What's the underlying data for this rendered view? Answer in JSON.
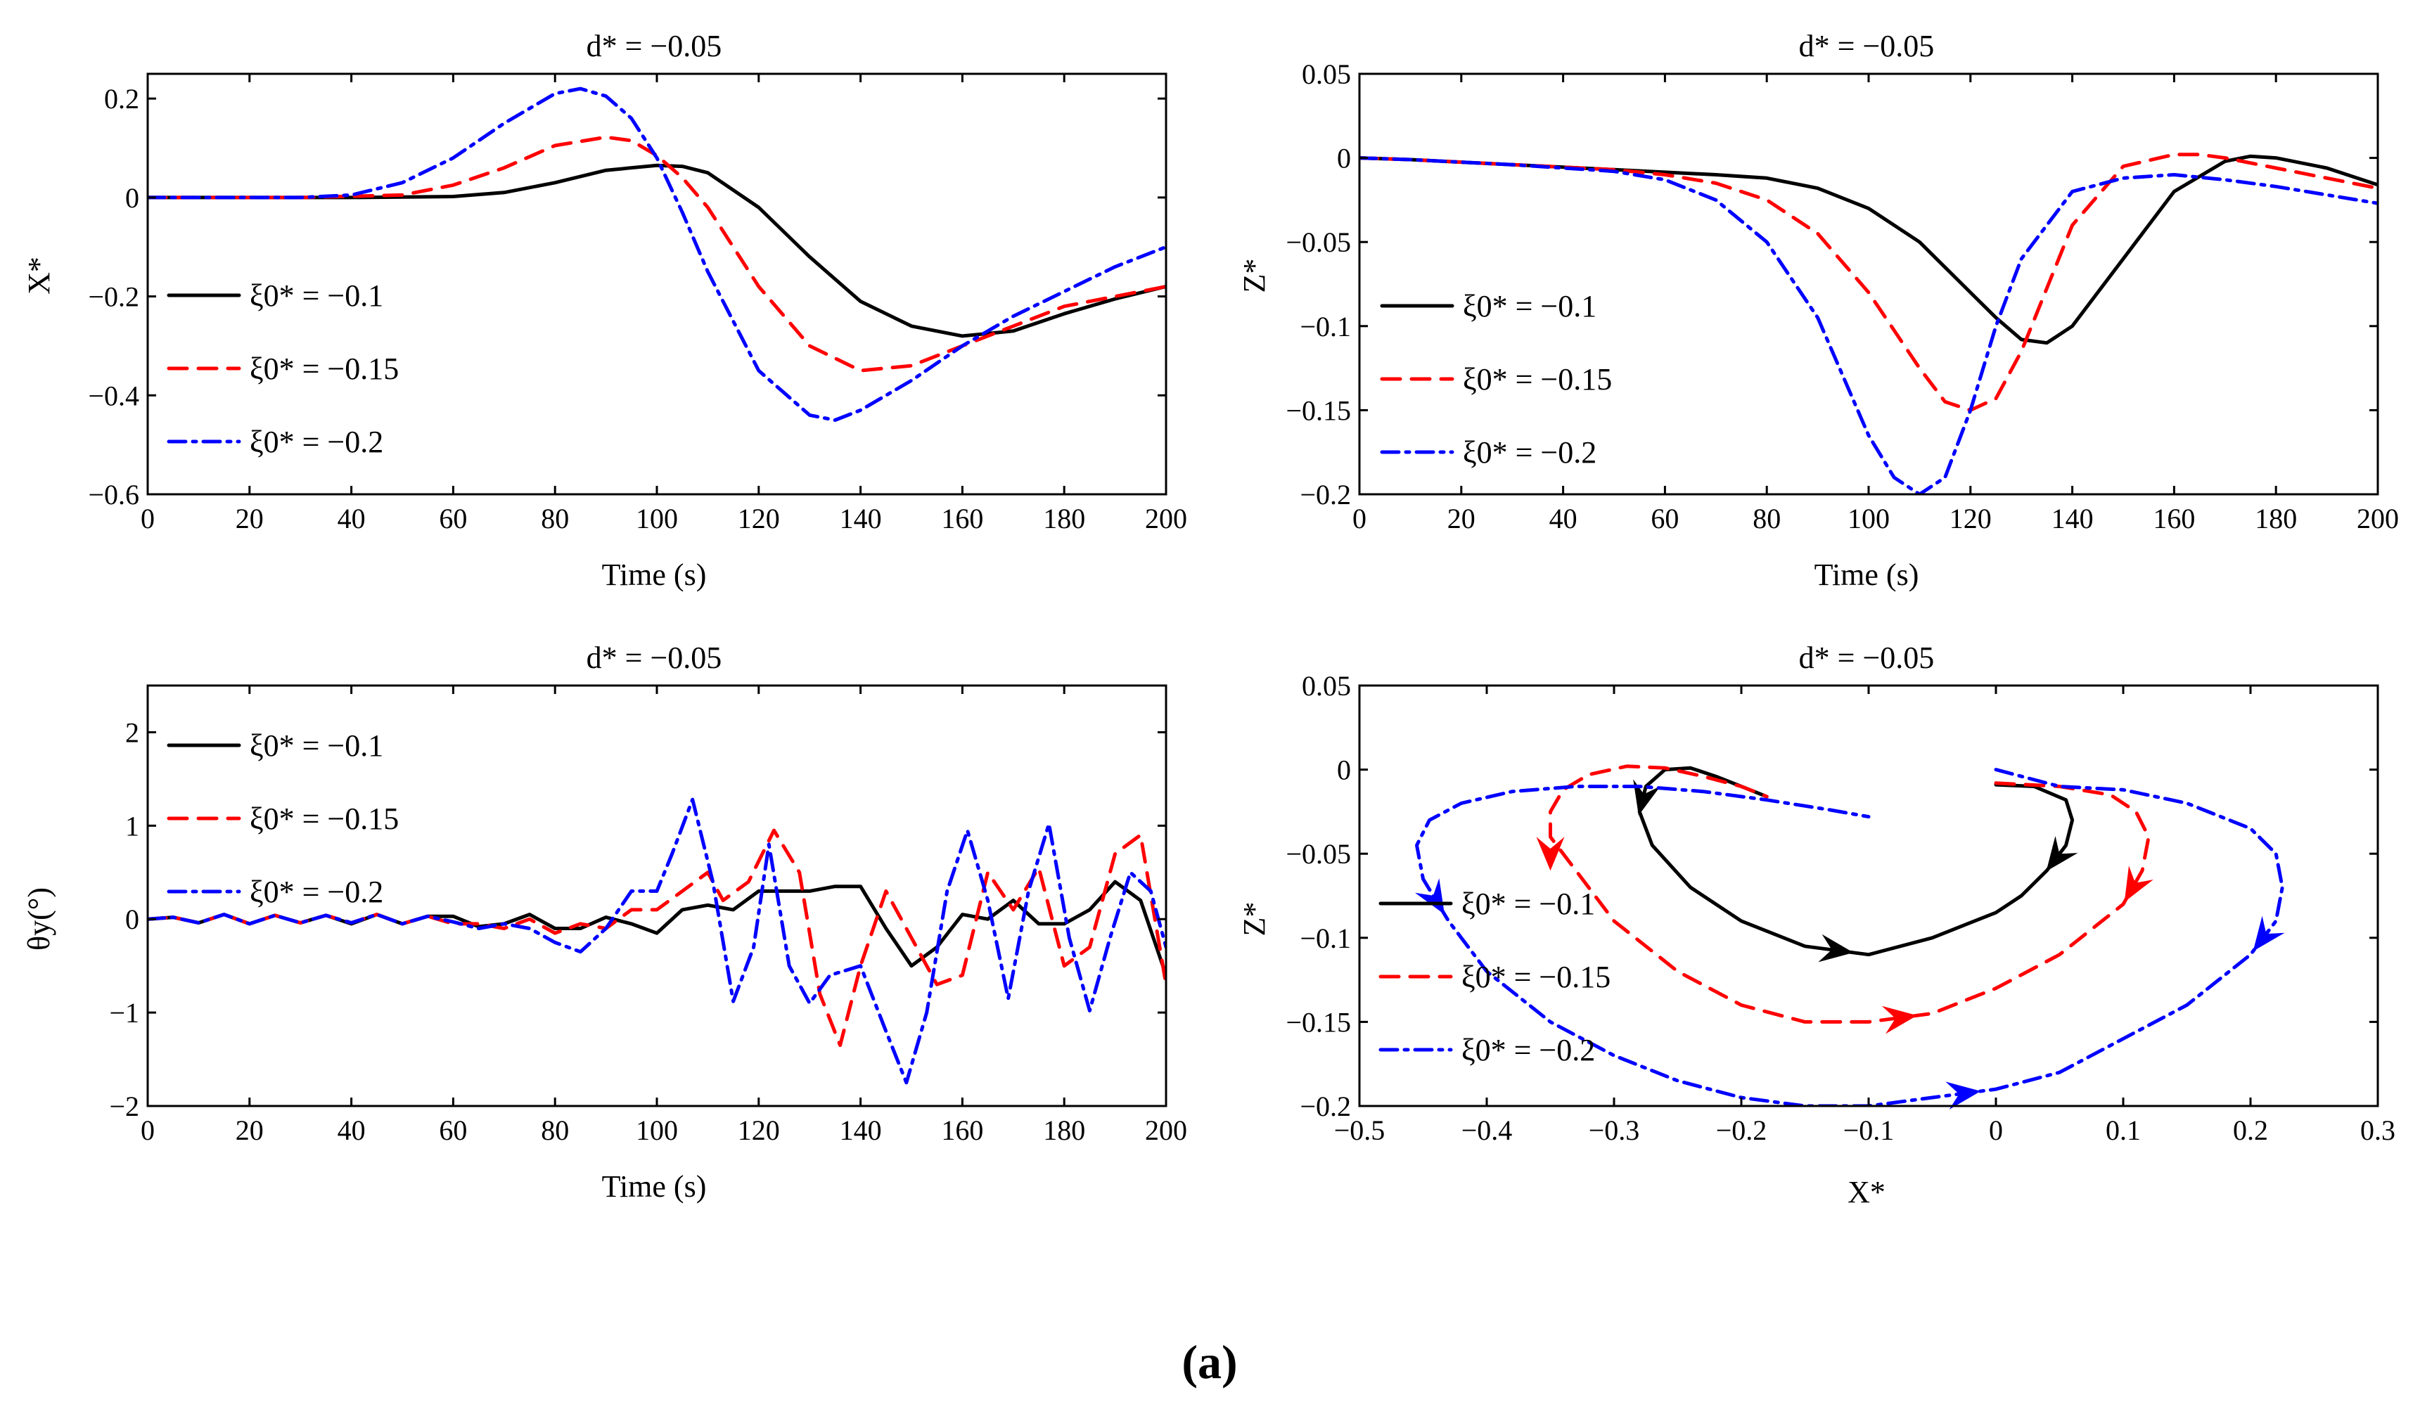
{
  "caption": "(a)",
  "colors": {
    "s1": "#000000",
    "s2": "#ff0000",
    "s3": "#0000ff"
  },
  "chart_data": [
    {
      "type": "line",
      "title": "d* = −0.05",
      "xlabel": "Time (s)",
      "ylabel": "X*",
      "xlim": [
        0,
        200
      ],
      "ylim": [
        -0.6,
        0.25
      ],
      "xticks": [
        0,
        20,
        40,
        60,
        80,
        100,
        120,
        140,
        160,
        180,
        200
      ],
      "xtick_labels": [
        "0",
        "20",
        "40",
        "60",
        "80",
        "100",
        "120",
        "140",
        "160",
        "180",
        "200"
      ],
      "yticks": [
        -0.6,
        -0.4,
        -0.2,
        0,
        0.2
      ],
      "ytick_labels": [
        "−0.6",
        "−0.4",
        "−0.2",
        "0",
        "0.2"
      ],
      "legend": [
        "ξ0* = −0.1",
        "ξ0* = −0.15",
        "ξ0* = −0.2"
      ],
      "legend_position": "lower-left",
      "series": [
        {
          "name": "ξ0* = −0.1",
          "style": "solid",
          "x": [
            0,
            40,
            60,
            70,
            80,
            90,
            100,
            105,
            110,
            120,
            130,
            140,
            150,
            160,
            170,
            180,
            190,
            200
          ],
          "y": [
            0,
            0,
            0.002,
            0.01,
            0.03,
            0.055,
            0.065,
            0.063,
            0.05,
            -0.02,
            -0.12,
            -0.21,
            -0.26,
            -0.28,
            -0.27,
            -0.235,
            -0.205,
            -0.18
          ]
        },
        {
          "name": "ξ0* = −0.15",
          "style": "dashed",
          "x": [
            0,
            30,
            50,
            60,
            70,
            80,
            90,
            95,
            100,
            105,
            110,
            120,
            130,
            140,
            150,
            160,
            170,
            180,
            190,
            200
          ],
          "y": [
            0,
            0,
            0.005,
            0.025,
            0.06,
            0.105,
            0.122,
            0.115,
            0.085,
            0.04,
            -0.02,
            -0.18,
            -0.3,
            -0.35,
            -0.34,
            -0.3,
            -0.26,
            -0.22,
            -0.2,
            -0.18
          ]
        },
        {
          "name": "ξ0* = −0.2",
          "style": "dashdot",
          "x": [
            0,
            30,
            40,
            50,
            60,
            70,
            80,
            85,
            90,
            95,
            100,
            105,
            110,
            120,
            130,
            135,
            140,
            150,
            160,
            170,
            180,
            190,
            200
          ],
          "y": [
            0,
            0,
            0.005,
            0.03,
            0.08,
            0.15,
            0.21,
            0.22,
            0.205,
            0.16,
            0.08,
            -0.03,
            -0.15,
            -0.35,
            -0.44,
            -0.45,
            -0.43,
            -0.37,
            -0.3,
            -0.24,
            -0.19,
            -0.14,
            -0.1
          ]
        }
      ]
    },
    {
      "type": "line",
      "title": "d* = −0.05",
      "xlabel": "Time (s)",
      "ylabel": "Z*",
      "xlim": [
        0,
        200
      ],
      "ylim": [
        -0.2,
        0.05
      ],
      "xticks": [
        0,
        20,
        40,
        60,
        80,
        100,
        120,
        140,
        160,
        180,
        200
      ],
      "xtick_labels": [
        "0",
        "20",
        "40",
        "60",
        "80",
        "100",
        "120",
        "140",
        "160",
        "180",
        "200"
      ],
      "yticks": [
        -0.2,
        -0.15,
        -0.1,
        -0.05,
        0,
        0.05
      ],
      "ytick_labels": [
        "−0.2",
        "−0.15",
        "−0.1",
        "−0.05",
        "0",
        "0.05"
      ],
      "legend": [
        "ξ0* = −0.1",
        "ξ0* = −0.15",
        "ξ0* = −0.2"
      ],
      "legend_position": "lower-left",
      "series": [
        {
          "name": "ξ0* = −0.1",
          "style": "solid",
          "x": [
            0,
            10,
            30,
            50,
            70,
            80,
            90,
            100,
            110,
            120,
            125,
            130,
            135,
            140,
            150,
            160,
            170,
            175,
            180,
            190,
            200
          ],
          "y": [
            0,
            -0.001,
            -0.004,
            -0.007,
            -0.01,
            -0.012,
            -0.018,
            -0.03,
            -0.05,
            -0.08,
            -0.095,
            -0.108,
            -0.11,
            -0.1,
            -0.06,
            -0.02,
            -0.002,
            0.001,
            0,
            -0.006,
            -0.016
          ]
        },
        {
          "name": "ξ0* = −0.15",
          "style": "dashed",
          "x": [
            0,
            10,
            30,
            50,
            60,
            70,
            80,
            90,
            100,
            110,
            115,
            120,
            125,
            130,
            140,
            150,
            160,
            165,
            170,
            180,
            190,
            200
          ],
          "y": [
            0,
            -0.001,
            -0.004,
            -0.007,
            -0.01,
            -0.015,
            -0.025,
            -0.045,
            -0.08,
            -0.125,
            -0.145,
            -0.15,
            -0.143,
            -0.115,
            -0.04,
            -0.005,
            0.002,
            0.002,
            0,
            -0.006,
            -0.012,
            -0.018
          ]
        },
        {
          "name": "ξ0* = −0.2",
          "style": "dashdot",
          "x": [
            0,
            10,
            30,
            50,
            60,
            70,
            80,
            90,
            95,
            100,
            105,
            110,
            115,
            120,
            125,
            130,
            140,
            150,
            160,
            170,
            180,
            190,
            200
          ],
          "y": [
            0,
            -0.001,
            -0.004,
            -0.008,
            -0.013,
            -0.025,
            -0.05,
            -0.095,
            -0.13,
            -0.165,
            -0.19,
            -0.2,
            -0.19,
            -0.15,
            -0.1,
            -0.06,
            -0.02,
            -0.012,
            -0.01,
            -0.013,
            -0.017,
            -0.022,
            -0.027
          ]
        }
      ]
    },
    {
      "type": "line",
      "title": "d* = −0.05",
      "xlabel": "Time (s)",
      "ylabel": "θy(°)",
      "xlim": [
        0,
        200
      ],
      "ylim": [
        -2,
        2.5
      ],
      "xticks": [
        0,
        20,
        40,
        60,
        80,
        100,
        120,
        140,
        160,
        180,
        200
      ],
      "xtick_labels": [
        "0",
        "20",
        "40",
        "60",
        "80",
        "100",
        "120",
        "140",
        "160",
        "180",
        "200"
      ],
      "yticks": [
        -2,
        -1,
        0,
        1,
        2
      ],
      "ytick_labels": [
        "−2",
        "−1",
        "0",
        "1",
        "2"
      ],
      "legend": [
        "ξ0* = −0.1",
        "ξ0* = −0.15",
        "ξ0* = −0.2"
      ],
      "legend_position": "upper-left",
      "series": [
        {
          "name": "ξ0* = −0.1",
          "style": "solid",
          "x": [
            0,
            5,
            10,
            15,
            20,
            25,
            30,
            35,
            40,
            45,
            50,
            55,
            60,
            65,
            70,
            75,
            80,
            85,
            90,
            95,
            100,
            105,
            110,
            115,
            120,
            125,
            130,
            135,
            140,
            145,
            150,
            155,
            160,
            165,
            170,
            175,
            180,
            185,
            190,
            195,
            200
          ],
          "y": [
            0,
            0.02,
            -0.04,
            0.05,
            -0.05,
            0.04,
            -0.04,
            0.04,
            -0.05,
            0.05,
            -0.05,
            0.03,
            0.03,
            -0.08,
            -0.05,
            0.05,
            -0.1,
            -0.1,
            0.02,
            -0.05,
            -0.15,
            0.1,
            0.15,
            0.1,
            0.3,
            0.3,
            0.3,
            0.35,
            0.35,
            -0.1,
            -0.5,
            -0.3,
            0.05,
            0.0,
            0.2,
            -0.05,
            -0.05,
            0.1,
            0.4,
            0.2,
            -0.6
          ]
        },
        {
          "name": "ξ0* = −0.15",
          "style": "dashed",
          "x": [
            0,
            5,
            10,
            15,
            20,
            25,
            30,
            35,
            40,
            45,
            50,
            55,
            60,
            65,
            70,
            75,
            80,
            85,
            90,
            95,
            100,
            105,
            110,
            113,
            118,
            123,
            128,
            132,
            136,
            140,
            145,
            150,
            155,
            160,
            165,
            170,
            175,
            180,
            185,
            190,
            195,
            200
          ],
          "y": [
            0,
            0.02,
            -0.04,
            0.05,
            -0.05,
            0.04,
            -0.04,
            0.04,
            -0.04,
            0.05,
            -0.05,
            0.03,
            -0.05,
            -0.05,
            -0.1,
            0.0,
            -0.15,
            -0.05,
            -0.1,
            0.1,
            0.1,
            0.3,
            0.5,
            0.2,
            0.4,
            0.95,
            0.5,
            -0.8,
            -1.35,
            -0.5,
            0.3,
            -0.2,
            -0.7,
            -0.6,
            0.5,
            0.1,
            0.55,
            -0.5,
            -0.3,
            0.7,
            0.9,
            -0.7
          ]
        },
        {
          "name": "ξ0* = −0.2",
          "style": "dashdot",
          "x": [
            0,
            5,
            10,
            15,
            20,
            25,
            30,
            35,
            40,
            45,
            50,
            55,
            60,
            65,
            70,
            75,
            80,
            85,
            90,
            95,
            100,
            103,
            107,
            111,
            115,
            119,
            122,
            126,
            130,
            134,
            140,
            145,
            149,
            153,
            157,
            161,
            165,
            169,
            173,
            177,
            181,
            185,
            189,
            193,
            197,
            200
          ],
          "y": [
            0,
            0.02,
            -0.04,
            0.05,
            -0.05,
            0.04,
            -0.04,
            0.04,
            -0.04,
            0.05,
            -0.05,
            0.03,
            -0.03,
            -0.1,
            -0.05,
            -0.1,
            -0.25,
            -0.35,
            -0.1,
            0.3,
            0.3,
            0.7,
            1.28,
            0.4,
            -0.88,
            -0.3,
            0.8,
            -0.5,
            -0.9,
            -0.6,
            -0.5,
            -1.2,
            -1.75,
            -1.0,
            0.3,
            0.95,
            0.2,
            -0.85,
            0.3,
            1.02,
            -0.2,
            -0.98,
            -0.2,
            0.5,
            0.3,
            -0.3
          ]
        }
      ]
    },
    {
      "type": "line",
      "title": "d* = −0.05",
      "xlabel": "X*",
      "ylabel": "Z*",
      "xlim": [
        -0.5,
        0.3
      ],
      "ylim": [
        -0.2,
        0.05
      ],
      "xticks": [
        -0.5,
        -0.4,
        -0.3,
        -0.2,
        -0.1,
        0,
        0.1,
        0.2,
        0.3
      ],
      "xtick_labels": [
        "−0.5",
        "−0.4",
        "−0.3",
        "−0.2",
        "−0.1",
        "0",
        "0.1",
        "0.2",
        "0.3"
      ],
      "yticks": [
        -0.2,
        -0.15,
        -0.1,
        -0.05,
        0,
        0.05
      ],
      "ytick_labels": [
        "−0.2",
        "−0.15",
        "−0.1",
        "−0.05",
        "0",
        "0.05"
      ],
      "legend": [
        "ξ0* = −0.1",
        "ξ0* = −0.15",
        "ξ0* = −0.2"
      ],
      "legend_position": "left",
      "series": [
        {
          "name": "ξ0* = −0.1",
          "style": "solid",
          "x": [
            0,
            0.03,
            0.055,
            0.06,
            0.055,
            0.04,
            0.02,
            0,
            -0.05,
            -0.1,
            -0.15,
            -0.2,
            -0.24,
            -0.27,
            -0.28,
            -0.275,
            -0.26,
            -0.24,
            -0.22,
            -0.2,
            -0.18
          ],
          "y": [
            -0.009,
            -0.01,
            -0.018,
            -0.03,
            -0.045,
            -0.06,
            -0.075,
            -0.085,
            -0.1,
            -0.11,
            -0.105,
            -0.09,
            -0.07,
            -0.045,
            -0.025,
            -0.01,
            0,
            0.001,
            -0.004,
            -0.01,
            -0.016
          ],
          "arrows": [
            [
              0.055,
              -0.045,
              0.04,
              -0.06
            ],
            [
              -0.15,
              -0.105,
              -0.1,
              -0.11
            ],
            [
              -0.275,
              -0.01,
              -0.28,
              -0.025
            ]
          ]
        },
        {
          "name": "ξ0* = −0.15",
          "style": "dashed",
          "x": [
            0,
            0.05,
            0.09,
            0.11,
            0.12,
            0.115,
            0.1,
            0.05,
            0,
            -0.05,
            -0.1,
            -0.15,
            -0.2,
            -0.25,
            -0.3,
            -0.33,
            -0.35,
            -0.35,
            -0.34,
            -0.32,
            -0.29,
            -0.26,
            -0.23,
            -0.2,
            -0.18
          ],
          "y": [
            -0.008,
            -0.01,
            -0.015,
            -0.025,
            -0.04,
            -0.06,
            -0.08,
            -0.11,
            -0.13,
            -0.145,
            -0.15,
            -0.15,
            -0.14,
            -0.12,
            -0.09,
            -0.06,
            -0.04,
            -0.025,
            -0.012,
            -0.003,
            0.002,
            0.001,
            -0.004,
            -0.01,
            -0.016
          ],
          "arrows": [
            [
              0.115,
              -0.06,
              0.1,
              -0.08
            ],
            [
              -0.1,
              -0.15,
              -0.05,
              -0.145
            ],
            [
              -0.35,
              -0.04,
              -0.35,
              -0.06
            ]
          ]
        },
        {
          "name": "ξ0* = −0.2",
          "style": "dashdot",
          "x": [
            0,
            0.05,
            0.1,
            0.15,
            0.2,
            0.22,
            0.225,
            0.22,
            0.2,
            0.15,
            0.1,
            0.05,
            0,
            -0.05,
            -0.1,
            -0.15,
            -0.2,
            -0.25,
            -0.3,
            -0.35,
            -0.4,
            -0.43,
            -0.45,
            -0.455,
            -0.445,
            -0.42,
            -0.38,
            -0.33,
            -0.28,
            -0.23,
            -0.18,
            -0.13,
            -0.1
          ],
          "y": [
            0,
            -0.01,
            -0.012,
            -0.02,
            -0.035,
            -0.05,
            -0.07,
            -0.09,
            -0.11,
            -0.14,
            -0.16,
            -0.18,
            -0.19,
            -0.195,
            -0.2,
            -0.2,
            -0.195,
            -0.185,
            -0.17,
            -0.15,
            -0.12,
            -0.09,
            -0.065,
            -0.045,
            -0.03,
            -0.02,
            -0.013,
            -0.01,
            -0.01,
            -0.013,
            -0.018,
            -0.024,
            -0.028
          ],
          "arrows": [
            [
              0.22,
              -0.09,
              0.2,
              -0.11
            ],
            [
              -0.05,
              -0.195,
              0,
              -0.19
            ],
            [
              -0.45,
              -0.065,
              -0.43,
              -0.09
            ]
          ]
        }
      ]
    }
  ]
}
